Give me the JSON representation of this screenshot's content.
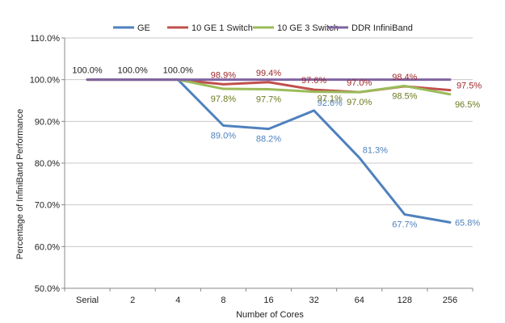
{
  "chart_data": {
    "type": "line",
    "categories": [
      "Serial",
      "2",
      "4",
      "8",
      "16",
      "32",
      "64",
      "128",
      "256"
    ],
    "xlabel": "Number of Cores",
    "ylabel": "Percentage of InfiniBand Performance",
    "ylim": [
      50,
      110
    ],
    "ytick_step": 10,
    "ytick_labels": [
      "50.0%",
      "60.0%",
      "70.0%",
      "80.0%",
      "90.0%",
      "100.0%",
      "110.0%"
    ],
    "grid": true,
    "legend_position": "top",
    "series": [
      {
        "name": "GE",
        "color": "#4f81bd",
        "values": [
          100,
          100,
          100,
          89.0,
          88.2,
          92.6,
          81.3,
          67.7,
          65.8
        ],
        "labels": [
          "100.0%",
          "100.0%",
          "100.0%",
          "89.0%",
          "88.2%",
          "92.6%",
          "81.3%",
          "67.7%",
          "65.8%"
        ]
      },
      {
        "name": "10 GE 1 Switch",
        "color": "#c0504d",
        "values": [
          100,
          100,
          100,
          98.9,
          99.4,
          97.6,
          97.0,
          98.4,
          97.5
        ],
        "labels": [
          "",
          "",
          "",
          "98.9%",
          "99.4%",
          "97.6%",
          "97.0%",
          "98.4%",
          "97.5%"
        ]
      },
      {
        "name": "10 GE 3 Switch",
        "color": "#9bbb59",
        "values": [
          100,
          100,
          100,
          97.8,
          97.7,
          97.1,
          97.0,
          98.5,
          96.5
        ],
        "labels": [
          "",
          "",
          "",
          "97.8%",
          "97.7%",
          "97.1%",
          "97.0%",
          "98.5%",
          "96.5%"
        ]
      },
      {
        "name": "DDR InfiniBand",
        "color": "#8064a2",
        "values": [
          100,
          100,
          100,
          100,
          100,
          100,
          100,
          100,
          100
        ],
        "labels": [
          "",
          "",
          "",
          "",
          "",
          "",
          "",
          "",
          ""
        ]
      }
    ]
  }
}
